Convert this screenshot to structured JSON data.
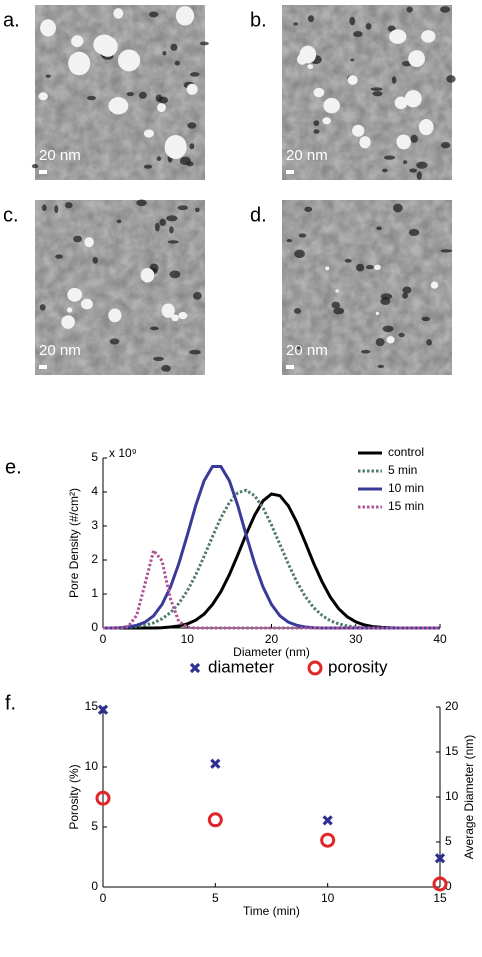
{
  "images": [
    {
      "panel": "a.",
      "scale_bar": "20 nm"
    },
    {
      "panel": "b.",
      "scale_bar": "20 nm"
    },
    {
      "panel": "c.",
      "scale_bar": "20 nm"
    },
    {
      "panel": "d.",
      "scale_bar": "20 nm"
    }
  ],
  "chart_data": [
    {
      "type": "line",
      "panel": "e.",
      "xlabel": "Diameter (nm)",
      "ylabel": "Pore Density (#/cm²)",
      "y_multiplier": "x 10⁹",
      "xlim": [
        0,
        40
      ],
      "xticks": [
        0,
        10,
        20,
        30,
        40
      ],
      "ylim": [
        0,
        5
      ],
      "yticks": [
        0,
        1,
        2,
        3,
        4,
        5
      ],
      "legend": "upper right",
      "x": [
        0,
        1,
        2,
        3,
        4,
        5,
        6,
        7,
        8,
        9,
        10,
        11,
        12,
        13,
        14,
        15,
        16,
        17,
        18,
        19,
        20,
        21,
        22,
        23,
        24,
        25,
        26,
        27,
        28,
        29,
        30,
        31,
        32,
        33,
        34,
        35,
        36,
        37,
        38,
        39,
        40
      ],
      "series": [
        {
          "name": "control",
          "color": "#000000",
          "style": "solid",
          "values": [
            0,
            0,
            0,
            0,
            0,
            0,
            0,
            0.01,
            0.03,
            0.06,
            0.12,
            0.23,
            0.41,
            0.69,
            1.07,
            1.57,
            2.15,
            2.76,
            3.32,
            3.74,
            3.94,
            3.89,
            3.59,
            3.11,
            2.52,
            1.91,
            1.36,
            0.9,
            0.56,
            0.33,
            0.18,
            0.09,
            0.04,
            0.02,
            0.01,
            0,
            0,
            0,
            0,
            0,
            0
          ]
        },
        {
          "name": "5 min",
          "color": "#4e7d6c",
          "style": "dotted",
          "values": [
            0,
            0,
            0.01,
            0.02,
            0.04,
            0.08,
            0.15,
            0.27,
            0.45,
            0.72,
            1.09,
            1.56,
            2.11,
            2.69,
            3.24,
            3.69,
            3.98,
            4.05,
            3.89,
            3.53,
            3.03,
            2.46,
            1.88,
            1.36,
            0.93,
            0.6,
            0.37,
            0.21,
            0.12,
            0.06,
            0.03,
            0.01,
            0,
            0,
            0,
            0,
            0,
            0,
            0,
            0,
            0
          ]
        },
        {
          "name": "10 min",
          "color": "#3a3a98",
          "style": "solid",
          "values": [
            0,
            0,
            0.01,
            0.03,
            0.08,
            0.17,
            0.36,
            0.69,
            1.2,
            1.89,
            2.73,
            3.6,
            4.33,
            4.75,
            4.75,
            4.33,
            3.6,
            2.73,
            1.89,
            1.2,
            0.69,
            0.36,
            0.17,
            0.08,
            0.03,
            0.01,
            0,
            0,
            0,
            0,
            0,
            0,
            0,
            0,
            0,
            0,
            0,
            0,
            0,
            0,
            0
          ]
        },
        {
          "name": "15 min",
          "color": "#b0559a",
          "style": "dotted",
          "values": [
            0,
            0,
            0,
            0.05,
            0.37,
            1.31,
            2.28,
            1.98,
            0.86,
            0.19,
            0.02,
            0,
            0,
            0,
            0,
            0,
            0,
            0,
            0,
            0,
            0,
            0,
            0,
            0,
            0,
            0,
            0,
            0,
            0,
            0,
            0,
            0,
            0,
            0,
            0,
            0,
            0,
            0,
            0,
            0,
            0
          ]
        }
      ]
    },
    {
      "type": "scatter",
      "panel": "f.",
      "xlabel": "Time (min)",
      "ylabel": "Porosity (%)",
      "y2label": "Average Diameter (nm)",
      "xlim": [
        0,
        15
      ],
      "xticks": [
        0,
        5,
        10,
        15
      ],
      "ylim": [
        0,
        15
      ],
      "yticks": [
        0,
        5,
        10,
        15
      ],
      "y2lim": [
        0,
        20
      ],
      "y2ticks": [
        0,
        5,
        10,
        15,
        20
      ],
      "legend": "top",
      "x": [
        0,
        5,
        10,
        15
      ],
      "series": [
        {
          "name": "diameter",
          "color": "#2e3192",
          "marker": "x",
          "axis": "y2",
          "values": [
            19.7,
            13.7,
            7.4,
            3.2
          ]
        },
        {
          "name": "porosity",
          "color": "#e0262b",
          "marker": "o",
          "values": [
            7.4,
            5.6,
            3.9,
            0.25
          ]
        }
      ]
    }
  ]
}
